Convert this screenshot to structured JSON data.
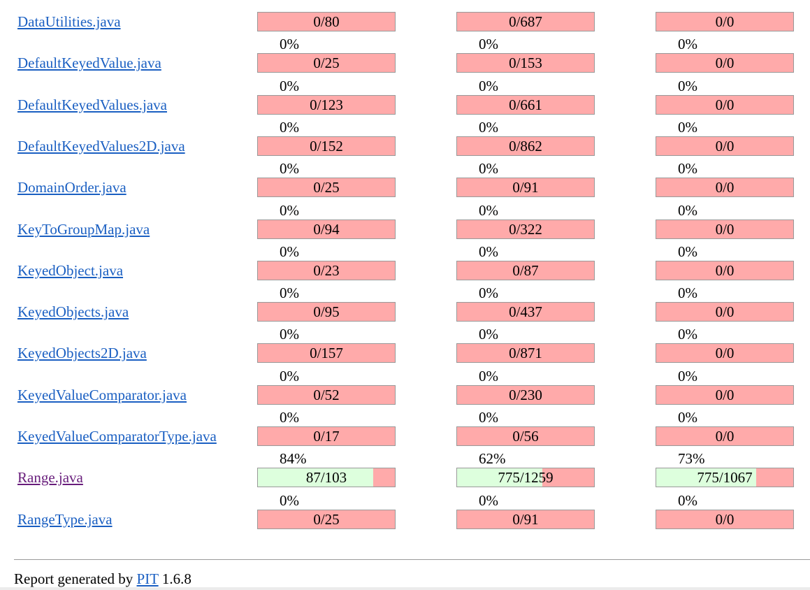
{
  "colors": {
    "link": "#1a5fc2",
    "visited_link": "#681d7b",
    "covered": "#ddffdd",
    "uncovered": "#ffaaaa",
    "bar_border": "#999999"
  },
  "files": [
    {
      "name": "DataUtilities.java",
      "visited": false,
      "metrics": [
        {
          "percent": "",
          "label": "0/80",
          "fraction": 0
        },
        {
          "percent": "",
          "label": "0/687",
          "fraction": 0
        },
        {
          "percent": "",
          "label": "0/0",
          "fraction": 0
        }
      ]
    },
    {
      "name": "DefaultKeyedValue.java",
      "visited": false,
      "metrics": [
        {
          "percent": "0%",
          "label": "0/25",
          "fraction": 0
        },
        {
          "percent": "0%",
          "label": "0/153",
          "fraction": 0
        },
        {
          "percent": "0%",
          "label": "0/0",
          "fraction": 0
        }
      ]
    },
    {
      "name": "DefaultKeyedValues.java",
      "visited": false,
      "metrics": [
        {
          "percent": "0%",
          "label": "0/123",
          "fraction": 0
        },
        {
          "percent": "0%",
          "label": "0/661",
          "fraction": 0
        },
        {
          "percent": "0%",
          "label": "0/0",
          "fraction": 0
        }
      ]
    },
    {
      "name": "DefaultKeyedValues2D.java",
      "visited": false,
      "metrics": [
        {
          "percent": "0%",
          "label": "0/152",
          "fraction": 0
        },
        {
          "percent": "0%",
          "label": "0/862",
          "fraction": 0
        },
        {
          "percent": "0%",
          "label": "0/0",
          "fraction": 0
        }
      ]
    },
    {
      "name": "DomainOrder.java",
      "visited": false,
      "metrics": [
        {
          "percent": "0%",
          "label": "0/25",
          "fraction": 0
        },
        {
          "percent": "0%",
          "label": "0/91",
          "fraction": 0
        },
        {
          "percent": "0%",
          "label": "0/0",
          "fraction": 0
        }
      ]
    },
    {
      "name": "KeyToGroupMap.java",
      "visited": false,
      "metrics": [
        {
          "percent": "0%",
          "label": "0/94",
          "fraction": 0
        },
        {
          "percent": "0%",
          "label": "0/322",
          "fraction": 0
        },
        {
          "percent": "0%",
          "label": "0/0",
          "fraction": 0
        }
      ]
    },
    {
      "name": "KeyedObject.java",
      "visited": false,
      "metrics": [
        {
          "percent": "0%",
          "label": "0/23",
          "fraction": 0
        },
        {
          "percent": "0%",
          "label": "0/87",
          "fraction": 0
        },
        {
          "percent": "0%",
          "label": "0/0",
          "fraction": 0
        }
      ]
    },
    {
      "name": "KeyedObjects.java",
      "visited": false,
      "metrics": [
        {
          "percent": "0%",
          "label": "0/95",
          "fraction": 0
        },
        {
          "percent": "0%",
          "label": "0/437",
          "fraction": 0
        },
        {
          "percent": "0%",
          "label": "0/0",
          "fraction": 0
        }
      ]
    },
    {
      "name": "KeyedObjects2D.java",
      "visited": false,
      "metrics": [
        {
          "percent": "0%",
          "label": "0/157",
          "fraction": 0
        },
        {
          "percent": "0%",
          "label": "0/871",
          "fraction": 0
        },
        {
          "percent": "0%",
          "label": "0/0",
          "fraction": 0
        }
      ]
    },
    {
      "name": "KeyedValueComparator.java",
      "visited": false,
      "metrics": [
        {
          "percent": "0%",
          "label": "0/52",
          "fraction": 0
        },
        {
          "percent": "0%",
          "label": "0/230",
          "fraction": 0
        },
        {
          "percent": "0%",
          "label": "0/0",
          "fraction": 0
        }
      ]
    },
    {
      "name": "KeyedValueComparatorType.java",
      "visited": false,
      "metrics": [
        {
          "percent": "0%",
          "label": "0/17",
          "fraction": 0
        },
        {
          "percent": "0%",
          "label": "0/56",
          "fraction": 0
        },
        {
          "percent": "0%",
          "label": "0/0",
          "fraction": 0
        }
      ]
    },
    {
      "name": "Range.java",
      "visited": true,
      "metrics": [
        {
          "percent": "84%",
          "label": "87/103",
          "fraction": 0.84
        },
        {
          "percent": "62%",
          "label": "775/1259",
          "fraction": 0.62
        },
        {
          "percent": "73%",
          "label": "775/1067",
          "fraction": 0.73
        }
      ]
    },
    {
      "name": "RangeType.java",
      "visited": false,
      "metrics": [
        {
          "percent": "0%",
          "label": "0/25",
          "fraction": 0
        },
        {
          "percent": "0%",
          "label": "0/91",
          "fraction": 0
        },
        {
          "percent": "0%",
          "label": "0/0",
          "fraction": 0
        }
      ]
    }
  ],
  "footer": {
    "prefix": "Report generated by",
    "link": "PIT",
    "version": "1.6.8"
  }
}
